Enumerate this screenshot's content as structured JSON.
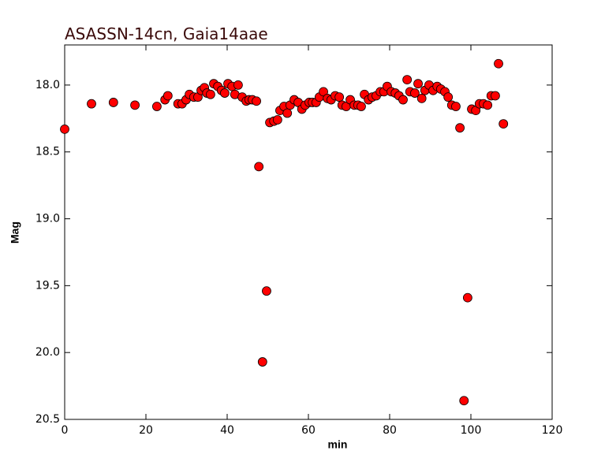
{
  "chart_data": {
    "type": "scatter",
    "title": "ASASSN-14cn, Gaia14aae",
    "xlabel": "min",
    "ylabel": "Mag",
    "color": "#ff0000",
    "yinverted": true,
    "xlim": [
      0,
      120
    ],
    "xticks": [
      0,
      20,
      40,
      60,
      80,
      100,
      120
    ],
    "ylim": [
      20.5,
      17.7
    ],
    "yticks": [
      {
        "value": 18.0,
        "label": "18.0"
      },
      {
        "value": 18.5,
        "label": "18.5"
      },
      {
        "value": 19.0,
        "label": "19.0"
      },
      {
        "value": 19.5,
        "label": "19.5"
      },
      {
        "value": 20.0,
        "label": "20.0"
      },
      {
        "value": 20.5,
        "label": "20.5"
      }
    ],
    "x": [
      0,
      6.6,
      12.0,
      17.3,
      22.7,
      24.7,
      25.4,
      27.9,
      28.9,
      29.9,
      30.7,
      31.8,
      32.8,
      33.6,
      34.4,
      35.0,
      35.9,
      36.7,
      37.7,
      38.6,
      39.4,
      40.2,
      41.2,
      41.9,
      42.7,
      43.7,
      44.7,
      45.4,
      46.2,
      47.2,
      47.8,
      48.7,
      49.7,
      50.5,
      51.5,
      52.4,
      53.0,
      54.0,
      54.8,
      55.5,
      56.5,
      57.5,
      58.4,
      59.2,
      60.2,
      61.0,
      61.9,
      62.7,
      63.7,
      64.7,
      65.6,
      66.6,
      67.6,
      68.3,
      69.3,
      70.3,
      71.3,
      72.2,
      73.0,
      73.8,
      74.8,
      75.7,
      76.7,
      77.7,
      78.6,
      79.4,
      80.4,
      81.4,
      82.3,
      83.3,
      84.3,
      85.0,
      86.2,
      87.0,
      87.9,
      88.7,
      89.7,
      90.7,
      91.7,
      92.6,
      93.6,
      94.4,
      95.3,
      96.3,
      97.3,
      98.3,
      99.2,
      100.2,
      101.2,
      102.1,
      103.1,
      104.1,
      105.0,
      106.0,
      106.8,
      108.0
    ],
    "values": [
      18.33,
      18.14,
      18.13,
      18.15,
      18.16,
      18.11,
      18.08,
      18.14,
      18.14,
      18.11,
      18.07,
      18.09,
      18.09,
      18.04,
      18.02,
      18.06,
      18.07,
      17.99,
      18.01,
      18.04,
      18.06,
      17.99,
      18.01,
      18.07,
      18.0,
      18.09,
      18.12,
      18.11,
      18.11,
      18.12,
      18.61,
      20.07,
      19.54,
      18.28,
      18.27,
      18.26,
      18.19,
      18.16,
      18.21,
      18.15,
      18.11,
      18.13,
      18.18,
      18.15,
      18.13,
      18.13,
      18.13,
      18.09,
      18.05,
      18.1,
      18.11,
      18.08,
      18.09,
      18.15,
      18.16,
      18.11,
      18.15,
      18.15,
      18.16,
      18.07,
      18.11,
      18.09,
      18.08,
      18.05,
      18.05,
      18.01,
      18.05,
      18.06,
      18.08,
      18.11,
      17.96,
      18.05,
      18.06,
      17.99,
      18.1,
      18.04,
      18.0,
      18.04,
      18.01,
      18.03,
      18.05,
      18.09,
      18.15,
      18.16,
      18.32,
      20.36,
      19.59,
      18.18,
      18.19,
      18.14,
      18.14,
      18.15,
      18.08,
      18.08,
      17.84,
      18.29
    ]
  }
}
